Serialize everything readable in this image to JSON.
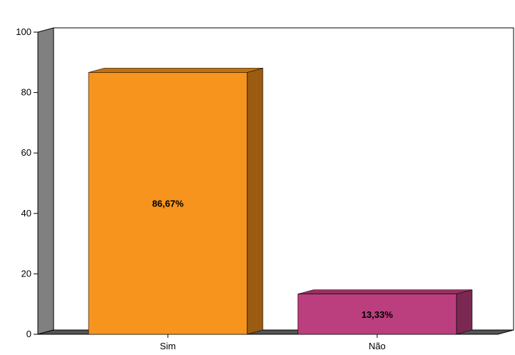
{
  "chart_data": {
    "type": "bar",
    "title": "",
    "xlabel": "",
    "ylabel": "",
    "ylim": [
      0,
      100
    ],
    "yticks": [
      0,
      20,
      40,
      60,
      80,
      100
    ],
    "ytick_labels": [
      "0",
      "20",
      "40",
      "60",
      "80",
      "100"
    ],
    "grid": false,
    "legend": "none",
    "categories": [
      "Sim",
      "Não"
    ],
    "values": [
      86.67,
      13.33
    ],
    "data_labels": [
      "86,67%",
      "13,33%"
    ],
    "colors": {
      "bars": [
        "#f7941d",
        "#bb3f7e"
      ],
      "bar_sides": [
        "#9b5c12",
        "#7a2852"
      ],
      "bar_tops": [
        "#c2720f",
        "#95305f"
      ],
      "wall": "#808080",
      "floor": "#555555"
    }
  }
}
